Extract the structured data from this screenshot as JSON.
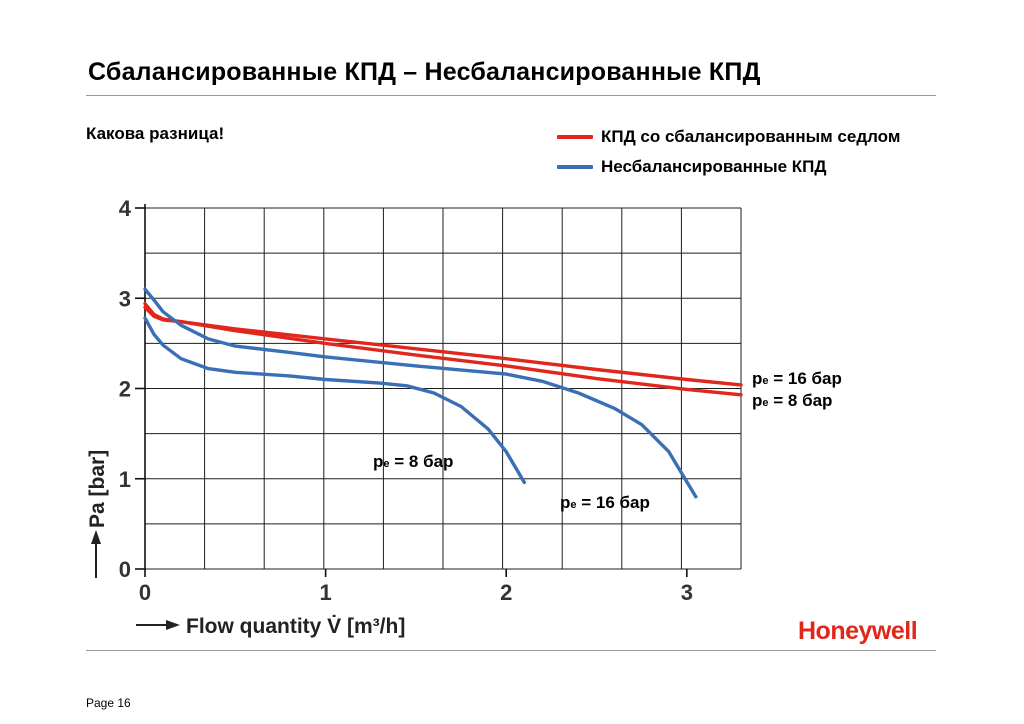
{
  "title": "Сбалансированные КПД –  Несбалансированные КПД",
  "subtitle": "Какова разница!",
  "legend": [
    {
      "label": "КПД со сбалансированным седлом",
      "color": "#e1261c"
    },
    {
      "label": "Несбалансированные КПД",
      "color": "#3a6fb5"
    }
  ],
  "brand": "Honeywell",
  "page": "Page 16",
  "chart_data": {
    "type": "line",
    "xlabel": "Flow quantity V̇ [m³/h]",
    "ylabel": "Pa [bar]",
    "xlim": [
      0,
      3.3
    ],
    "ylim": [
      0,
      4
    ],
    "x_ticks": [
      "0",
      "1",
      "2",
      "3"
    ],
    "y_ticks": [
      "0",
      "1",
      "2",
      "3",
      "4"
    ],
    "grid": true,
    "curve_labels": [
      {
        "p": "p",
        "sub": "e",
        "rest": " = 16 бар"
      },
      {
        "p": "p",
        "sub": "e",
        "rest": " = 8 бар"
      },
      {
        "p": "p",
        "sub": "e",
        "rest": " = 8 бар"
      },
      {
        "p": "p",
        "sub": "e",
        "rest": " = 16 бар"
      }
    ],
    "series": [
      {
        "group": "balanced",
        "color": "#e1261c",
        "condition": "pe = 16 бар",
        "points": [
          [
            0,
            2.9
          ],
          [
            0.05,
            2.8
          ],
          [
            0.1,
            2.76
          ],
          [
            0.2,
            2.74
          ],
          [
            0.5,
            2.66
          ],
          [
            1.0,
            2.55
          ],
          [
            1.5,
            2.44
          ],
          [
            2.0,
            2.33
          ],
          [
            2.5,
            2.21
          ],
          [
            3.0,
            2.1
          ],
          [
            3.3,
            2.04
          ]
        ]
      },
      {
        "group": "balanced",
        "color": "#e1261c",
        "condition": "pe = 8 бар",
        "points": [
          [
            0,
            2.94
          ],
          [
            0.05,
            2.82
          ],
          [
            0.1,
            2.77
          ],
          [
            0.2,
            2.74
          ],
          [
            0.5,
            2.64
          ],
          [
            1.0,
            2.5
          ],
          [
            1.5,
            2.37
          ],
          [
            2.0,
            2.25
          ],
          [
            2.5,
            2.11
          ],
          [
            3.0,
            1.99
          ],
          [
            3.3,
            1.93
          ]
        ]
      },
      {
        "group": "unbalanced",
        "color": "#3a6fb5",
        "condition": "pe = 8 бар",
        "points": [
          [
            0,
            2.78
          ],
          [
            0.05,
            2.6
          ],
          [
            0.1,
            2.48
          ],
          [
            0.2,
            2.33
          ],
          [
            0.35,
            2.22
          ],
          [
            0.5,
            2.18
          ],
          [
            0.8,
            2.14
          ],
          [
            1.0,
            2.1
          ],
          [
            1.3,
            2.06
          ],
          [
            1.45,
            2.03
          ],
          [
            1.6,
            1.95
          ],
          [
            1.75,
            1.8
          ],
          [
            1.9,
            1.55
          ],
          [
            2.0,
            1.3
          ],
          [
            2.1,
            0.96
          ]
        ]
      },
      {
        "group": "unbalanced",
        "color": "#3a6fb5",
        "condition": "pe = 16 бар",
        "points": [
          [
            0,
            3.1
          ],
          [
            0.05,
            2.98
          ],
          [
            0.1,
            2.85
          ],
          [
            0.2,
            2.7
          ],
          [
            0.35,
            2.55
          ],
          [
            0.5,
            2.47
          ],
          [
            0.8,
            2.4
          ],
          [
            1.0,
            2.35
          ],
          [
            1.5,
            2.25
          ],
          [
            2.0,
            2.16
          ],
          [
            2.2,
            2.08
          ],
          [
            2.4,
            1.95
          ],
          [
            2.6,
            1.78
          ],
          [
            2.75,
            1.6
          ],
          [
            2.9,
            1.3
          ],
          [
            3.05,
            0.8
          ]
        ]
      }
    ]
  }
}
